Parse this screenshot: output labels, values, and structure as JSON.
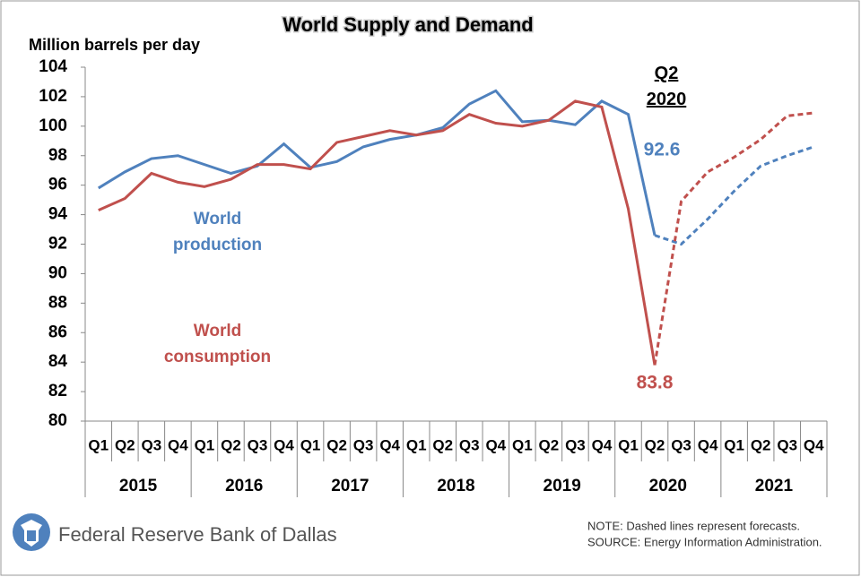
{
  "chart_data": {
    "type": "line",
    "title": "World Supply and Demand",
    "y_label": "Million barrels per day",
    "categories": [
      "Q1",
      "Q2",
      "Q3",
      "Q4",
      "Q1",
      "Q2",
      "Q3",
      "Q4",
      "Q1",
      "Q2",
      "Q3",
      "Q4",
      "Q1",
      "Q2",
      "Q3",
      "Q4",
      "Q1",
      "Q2",
      "Q3",
      "Q4",
      "Q1",
      "Q2",
      "Q3",
      "Q4",
      "Q1",
      "Q2",
      "Q3",
      "Q4"
    ],
    "groups": [
      "2015",
      "2016",
      "2017",
      "2018",
      "2019",
      "2020",
      "2021"
    ],
    "series": [
      {
        "name": "World production",
        "color": "#4f81bd",
        "values": [
          95.8,
          96.9,
          97.8,
          98.0,
          97.4,
          96.8,
          97.3,
          98.8,
          97.2,
          97.6,
          98.6,
          99.1,
          99.4,
          99.9,
          101.5,
          102.4,
          100.3,
          100.4,
          100.1,
          101.7,
          100.8,
          92.6,
          92.0,
          93.7,
          95.6,
          97.3,
          98.0,
          98.6
        ]
      },
      {
        "name": "World consumption",
        "color": "#c0504d",
        "values": [
          94.3,
          95.1,
          96.8,
          96.2,
          95.9,
          96.4,
          97.4,
          97.4,
          97.1,
          98.9,
          99.3,
          99.7,
          99.4,
          99.7,
          100.8,
          100.2,
          100.0,
          100.4,
          101.7,
          101.3,
          94.4,
          83.8,
          94.9,
          96.9,
          97.9,
          99.1,
          100.7,
          100.9
        ]
      }
    ],
    "forecast_start": 21,
    "ylim": [
      80,
      104
    ],
    "yticks": [
      80,
      82,
      84,
      86,
      88,
      90,
      92,
      94,
      96,
      98,
      100,
      102,
      104
    ],
    "grid": false,
    "annotation": "Q2 2020",
    "source_org": "Federal Reserve Bank of Dallas",
    "note": "NOTE: Dashed lines represent forecasts.",
    "source": "SOURCE: Energy Information Administration."
  }
}
